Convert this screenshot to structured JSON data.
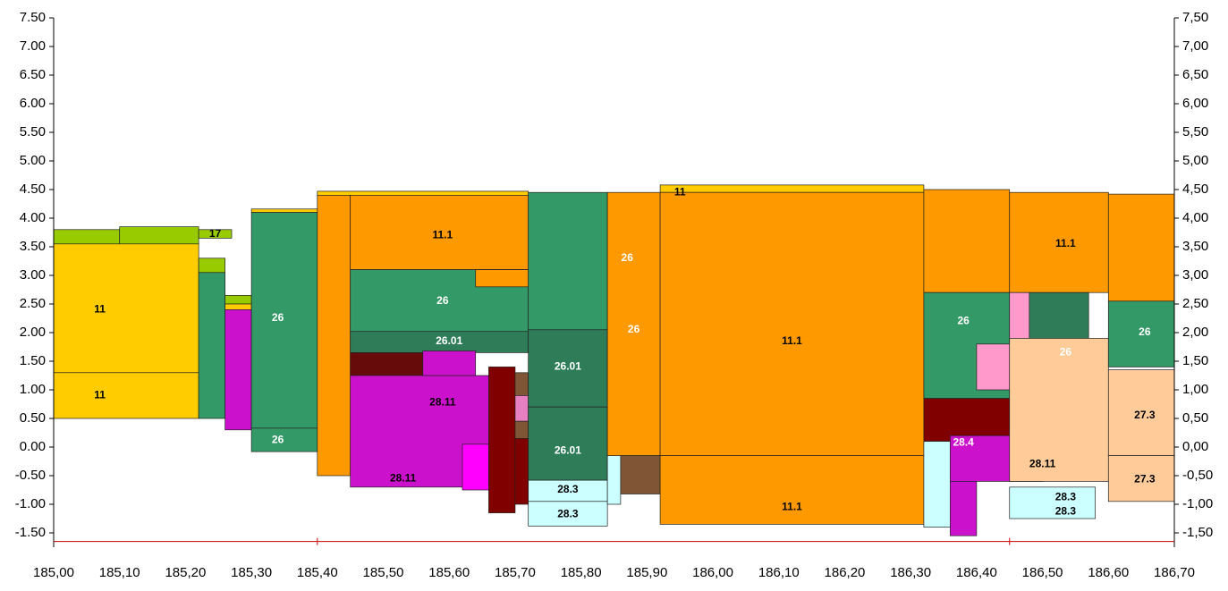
{
  "chart_data": {
    "type": "section",
    "xlim": [
      185.0,
      186.7
    ],
    "xticks": [
      {
        "value": 185.0,
        "label": "185,00"
      },
      {
        "value": 185.1,
        "label": "185,10"
      },
      {
        "value": 185.2,
        "label": "185,20"
      },
      {
        "value": 185.3,
        "label": "185,30"
      },
      {
        "value": 185.4,
        "label": "185,40"
      },
      {
        "value": 185.5,
        "label": "185,50"
      },
      {
        "value": 185.6,
        "label": "185,60"
      },
      {
        "value": 185.7,
        "label": "185,70"
      },
      {
        "value": 185.8,
        "label": "185,80"
      },
      {
        "value": 185.9,
        "label": "185,90"
      },
      {
        "value": 186.0,
        "label": "186,00"
      },
      {
        "value": 186.1,
        "label": "186,10"
      },
      {
        "value": 186.2,
        "label": "186,20"
      },
      {
        "value": 186.3,
        "label": "186,30"
      },
      {
        "value": 186.4,
        "label": "186,40"
      },
      {
        "value": 186.5,
        "label": "186,50"
      },
      {
        "value": 186.6,
        "label": "186,60"
      },
      {
        "value": 186.7,
        "label": "186,70"
      }
    ],
    "ylim": [
      -1.75,
      7.5
    ],
    "yticks": [
      {
        "value": 7.5,
        "label": "7.50"
      },
      {
        "value": 7.0,
        "label": "7.00"
      },
      {
        "value": 6.5,
        "label": "6.50"
      },
      {
        "value": 6.0,
        "label": "6.00"
      },
      {
        "value": 5.5,
        "label": "5.50"
      },
      {
        "value": 5.0,
        "label": "5.00"
      },
      {
        "value": 4.5,
        "label": "4.50"
      },
      {
        "value": 4.0,
        "label": "4.00"
      },
      {
        "value": 3.5,
        "label": "3.50"
      },
      {
        "value": 3.0,
        "label": "3.00"
      },
      {
        "value": 2.5,
        "label": "2.50"
      },
      {
        "value": 2.0,
        "label": "2.00"
      },
      {
        "value": 1.5,
        "label": "1.50"
      },
      {
        "value": 1.0,
        "label": "1.00"
      },
      {
        "value": 0.5,
        "label": "0.50"
      },
      {
        "value": 0.0,
        "label": "0.00"
      },
      {
        "value": -0.5,
        "label": "-0.50"
      },
      {
        "value": -1.0,
        "label": "-1.00"
      },
      {
        "value": -1.5,
        "label": "-1.50"
      }
    ],
    "y2lim": [
      -1.75,
      7.5
    ],
    "y2ticks": [
      {
        "value": 7.5,
        "label": "7,50"
      },
      {
        "value": 7.0,
        "label": "7,00"
      },
      {
        "value": 6.5,
        "label": "6,50"
      },
      {
        "value": 6.0,
        "label": "6,00"
      },
      {
        "value": 5.5,
        "label": "5,50"
      },
      {
        "value": 5.0,
        "label": "5,00"
      },
      {
        "value": 4.5,
        "label": "4,50"
      },
      {
        "value": 4.0,
        "label": "4,00"
      },
      {
        "value": 3.5,
        "label": "3,50"
      },
      {
        "value": 3.0,
        "label": "3,00"
      },
      {
        "value": 2.5,
        "label": "2,50"
      },
      {
        "value": 2.0,
        "label": "2,00"
      },
      {
        "value": 1.5,
        "label": "1,50"
      },
      {
        "value": 1.0,
        "label": "1,00"
      },
      {
        "value": 0.5,
        "label": "0,50"
      },
      {
        "value": 0.0,
        "label": "0,00"
      },
      {
        "value": -0.5,
        "label": "-0,50"
      },
      {
        "value": -1.0,
        "label": "-1,00"
      },
      {
        "value": -1.5,
        "label": "-1,50"
      }
    ],
    "reference_line": {
      "y": -1.65,
      "color": "#cc0000",
      "marks_x": [
        185.4,
        186.45
      ]
    },
    "blocks": [
      {
        "color": "#99cc00",
        "x": [
          185.0,
          185.1
        ],
        "y": [
          3.5,
          3.8
        ]
      },
      {
        "color": "#99cc00",
        "x": [
          185.1,
          185.22
        ],
        "y": [
          3.5,
          3.85
        ]
      },
      {
        "color": "#ffcc00",
        "x": [
          185.0,
          185.22
        ],
        "y": [
          1.3,
          3.55
        ]
      },
      {
        "color": "#ffcc00",
        "x": [
          185.0,
          185.22
        ],
        "y": [
          0.5,
          1.3
        ]
      },
      {
        "color": "#99cc00",
        "x": [
          185.22,
          185.27
        ],
        "y": [
          3.65,
          3.8
        ]
      },
      {
        "color": "#99cc00",
        "x": [
          185.22,
          185.26
        ],
        "y": [
          3.05,
          3.3
        ]
      },
      {
        "color": "#339966",
        "x": [
          185.22,
          185.26
        ],
        "y": [
          0.5,
          3.05
        ]
      },
      {
        "color": "#99cc00",
        "x": [
          185.26,
          185.3
        ],
        "y": [
          2.5,
          2.65
        ]
      },
      {
        "color": "#ffcc00",
        "x": [
          185.26,
          185.3
        ],
        "y": [
          2.4,
          2.5
        ]
      },
      {
        "color": "#cc11cc",
        "x": [
          185.26,
          185.3
        ],
        "y": [
          0.3,
          2.4
        ]
      },
      {
        "color": "#ffcc00",
        "x": [
          185.3,
          185.4
        ],
        "y": [
          4.1,
          4.16
        ]
      },
      {
        "color": "#339966",
        "x": [
          185.3,
          185.4
        ],
        "y": [
          0.33,
          4.1
        ]
      },
      {
        "color": "#339966",
        "x": [
          185.3,
          185.4
        ],
        "y": [
          -0.08,
          0.33
        ]
      },
      {
        "color": "#ffcc00",
        "x": [
          185.4,
          185.72
        ],
        "y": [
          4.38,
          4.47
        ]
      },
      {
        "color": "#ff9900",
        "x": [
          185.4,
          185.45
        ],
        "y": [
          -0.5,
          4.4
        ]
      },
      {
        "color": "#ff9900",
        "x": [
          185.45,
          185.72
        ],
        "y": [
          3.1,
          4.4
        ]
      },
      {
        "color": "#339966",
        "x": [
          185.45,
          185.72
        ],
        "y": [
          2.0,
          3.1
        ]
      },
      {
        "color": "#ff9900",
        "x": [
          185.64,
          185.72
        ],
        "y": [
          2.8,
          3.1
        ]
      },
      {
        "color": "#2e7d58",
        "x": [
          185.45,
          185.72
        ],
        "y": [
          1.65,
          2.02
        ]
      },
      {
        "color": "#660a0a",
        "x": [
          185.45,
          185.56
        ],
        "y": [
          1.25,
          1.65
        ]
      },
      {
        "color": "#cc11cc",
        "x": [
          185.45,
          185.66
        ],
        "y": [
          -0.7,
          1.25
        ]
      },
      {
        "color": "#cc11cc",
        "x": [
          185.56,
          185.64
        ],
        "y": [
          1.25,
          1.68
        ]
      },
      {
        "color": "#ff00ff",
        "x": [
          185.62,
          185.66
        ],
        "y": [
          -0.75,
          0.05
        ]
      },
      {
        "color": "#800000",
        "x": [
          185.66,
          185.7
        ],
        "y": [
          -1.15,
          1.4
        ]
      },
      {
        "color": "#7f5535",
        "x": [
          185.7,
          185.72
        ],
        "y": [
          0.9,
          1.3
        ]
      },
      {
        "color": "#e680c0",
        "x": [
          185.7,
          185.72
        ],
        "y": [
          0.45,
          0.9
        ]
      },
      {
        "color": "#7f5535",
        "x": [
          185.7,
          185.72
        ],
        "y": [
          0.15,
          0.45
        ]
      },
      {
        "color": "#800000",
        "x": [
          185.7,
          185.72
        ],
        "y": [
          -1.0,
          0.15
        ]
      },
      {
        "color": "#339966",
        "x": [
          185.72,
          185.84
        ],
        "y": [
          2.05,
          4.45
        ]
      },
      {
        "color": "#2e7d58",
        "x": [
          185.72,
          185.84
        ],
        "y": [
          0.7,
          2.05
        ]
      },
      {
        "color": "#2e7d58",
        "x": [
          185.72,
          185.84
        ],
        "y": [
          -0.58,
          0.7
        ]
      },
      {
        "color": "#ccffff",
        "x": [
          185.72,
          185.84
        ],
        "y": [
          -0.95,
          -0.58
        ]
      },
      {
        "color": "#ccffff",
        "x": [
          185.72,
          185.84
        ],
        "y": [
          -1.38,
          -0.95
        ]
      },
      {
        "color": "#ccffff",
        "x": [
          185.84,
          185.86
        ],
        "y": [
          -1.0,
          -0.15
        ]
      },
      {
        "color": "#ff9900",
        "x": [
          185.84,
          185.92
        ],
        "y": [
          -0.15,
          4.45
        ]
      },
      {
        "color": "#7f5535",
        "x": [
          185.86,
          185.92
        ],
        "y": [
          -0.82,
          -0.15
        ]
      },
      {
        "color": "#ffcc00",
        "x": [
          185.92,
          186.32
        ],
        "y": [
          4.45,
          4.58
        ]
      },
      {
        "color": "#ff9900",
        "x": [
          185.92,
          186.32
        ],
        "y": [
          -0.15,
          4.45
        ]
      },
      {
        "color": "#ff9900",
        "x": [
          185.92,
          186.32
        ],
        "y": [
          -1.35,
          -0.15
        ]
      },
      {
        "color": "#ff9900",
        "x": [
          186.32,
          186.45
        ],
        "y": [
          2.7,
          4.5
        ]
      },
      {
        "color": "#339966",
        "x": [
          186.32,
          186.45
        ],
        "y": [
          0.85,
          2.7
        ]
      },
      {
        "color": "#800000",
        "x": [
          186.32,
          186.45
        ],
        "y": [
          0.1,
          0.85
        ]
      },
      {
        "color": "#ff99cc",
        "x": [
          186.4,
          186.45
        ],
        "y": [
          1.0,
          1.8
        ]
      },
      {
        "color": "#ccffff",
        "x": [
          186.32,
          186.36
        ],
        "y": [
          -1.4,
          0.1
        ]
      },
      {
        "color": "#cc11cc",
        "x": [
          186.36,
          186.4
        ],
        "y": [
          -1.55,
          0.15
        ]
      },
      {
        "color": "#cc11cc",
        "x": [
          186.36,
          186.5
        ],
        "y": [
          -0.6,
          0.2
        ]
      },
      {
        "color": "#ff9900",
        "x": [
          186.45,
          186.6
        ],
        "y": [
          2.7,
          4.45
        ]
      },
      {
        "color": "#ff99cc",
        "x": [
          186.45,
          186.48
        ],
        "y": [
          1.85,
          2.7
        ]
      },
      {
        "color": "#2e7d58",
        "x": [
          186.48,
          186.57
        ],
        "y": [
          1.85,
          2.7
        ]
      },
      {
        "color": "#ffcc99",
        "x": [
          186.45,
          186.6
        ],
        "y": [
          -0.6,
          1.9
        ]
      },
      {
        "color": "#ccffff",
        "x": [
          186.45,
          186.58
        ],
        "y": [
          -1.25,
          -0.7
        ]
      },
      {
        "color": "#ff9900",
        "x": [
          186.6,
          186.7
        ],
        "y": [
          2.55,
          4.42
        ]
      },
      {
        "color": "#339966",
        "x": [
          186.6,
          186.7
        ],
        "y": [
          1.4,
          2.55
        ]
      },
      {
        "color": "#ffcc99",
        "x": [
          186.6,
          186.7
        ],
        "y": [
          -0.15,
          1.35
        ]
      },
      {
        "color": "#ffcc99",
        "x": [
          186.6,
          186.7
        ],
        "y": [
          -0.95,
          -0.15
        ]
      }
    ],
    "labels": [
      {
        "text": "17",
        "x": 185.245,
        "y": 3.72,
        "color": "#000"
      },
      {
        "text": "11",
        "x": 185.07,
        "y": 2.4,
        "color": "#000"
      },
      {
        "text": "11",
        "x": 185.07,
        "y": 0.9,
        "color": "#000"
      },
      {
        "text": "26",
        "x": 185.34,
        "y": 2.25,
        "color": "#fff"
      },
      {
        "text": "26",
        "x": 185.34,
        "y": 0.12,
        "color": "#fff"
      },
      {
        "text": "11.1",
        "x": 185.59,
        "y": 3.7,
        "color": "#000"
      },
      {
        "text": "26",
        "x": 185.59,
        "y": 2.55,
        "color": "#fff"
      },
      {
        "text": "26.01",
        "x": 185.6,
        "y": 1.85,
        "color": "#fff"
      },
      {
        "text": "28.11",
        "x": 185.59,
        "y": 0.78,
        "color": "#000"
      },
      {
        "text": "28.11",
        "x": 185.53,
        "y": -0.55,
        "color": "#000"
      },
      {
        "text": "26.01",
        "x": 185.78,
        "y": 1.4,
        "color": "#fff"
      },
      {
        "text": "26.01",
        "x": 185.78,
        "y": -0.07,
        "color": "#fff"
      },
      {
        "text": "28.3",
        "x": 185.78,
        "y": -0.75,
        "color": "#000"
      },
      {
        "text": "28.3",
        "x": 185.78,
        "y": -1.18,
        "color": "#000"
      },
      {
        "text": "26",
        "x": 185.87,
        "y": 3.3,
        "color": "#fff"
      },
      {
        "text": "26",
        "x": 185.88,
        "y": 2.05,
        "color": "#fff"
      },
      {
        "text": "11",
        "x": 185.95,
        "y": 4.45,
        "color": "#000"
      },
      {
        "text": "11.1",
        "x": 186.12,
        "y": 1.85,
        "color": "#000"
      },
      {
        "text": "11.1",
        "x": 186.12,
        "y": -1.05,
        "color": "#000"
      },
      {
        "text": "26",
        "x": 186.38,
        "y": 2.2,
        "color": "#fff"
      },
      {
        "text": "28.4",
        "x": 186.38,
        "y": 0.07,
        "color": "#fff"
      },
      {
        "text": "28.11",
        "x": 186.5,
        "y": -0.3,
        "color": "#000"
      },
      {
        "text": "26",
        "x": 186.535,
        "y": 1.65,
        "color": "#fff"
      },
      {
        "text": "11.1",
        "x": 186.535,
        "y": 3.55,
        "color": "#000"
      },
      {
        "text": "26",
        "x": 186.655,
        "y": 2.0,
        "color": "#fff"
      },
      {
        "text": "27.3",
        "x": 186.655,
        "y": 0.55,
        "color": "#000"
      },
      {
        "text": "27.3",
        "x": 186.655,
        "y": -0.57,
        "color": "#000"
      },
      {
        "text": "28.3",
        "x": 186.535,
        "y": -0.88,
        "color": "#000"
      },
      {
        "text": "28.3",
        "x": 186.535,
        "y": -1.13,
        "color": "#000"
      }
    ]
  }
}
